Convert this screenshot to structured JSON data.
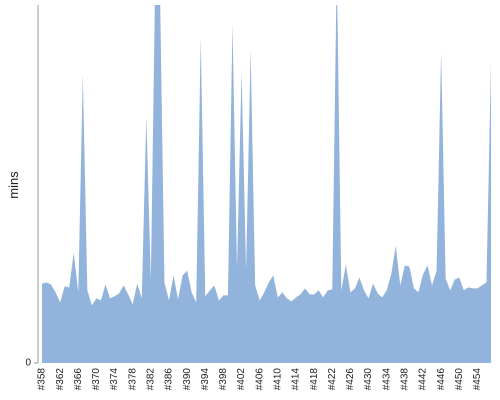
{
  "chart_data": {
    "type": "area",
    "y_label": "mins",
    "color": "#92b4dc",
    "ylim": [
      0,
      36
    ],
    "yticks": [
      0
    ],
    "categories": [
      "#358",
      null,
      null,
      null,
      "#362",
      null,
      null,
      null,
      "#366",
      null,
      null,
      null,
      "#370",
      null,
      null,
      null,
      "#374",
      null,
      null,
      null,
      "#378",
      null,
      null,
      null,
      "#382",
      null,
      null,
      null,
      "#386",
      null,
      null,
      null,
      "#390",
      null,
      null,
      null,
      "#394",
      null,
      null,
      null,
      "#398",
      null,
      null,
      null,
      "#402",
      null,
      null,
      null,
      "#406",
      null,
      null,
      null,
      "#410",
      null,
      null,
      null,
      "#414",
      null,
      null,
      null,
      "#418",
      null,
      null,
      null,
      "#422",
      null,
      null,
      null,
      "#426",
      null,
      null,
      null,
      "#430",
      null,
      null,
      null,
      "#434",
      null,
      null,
      null,
      "#438",
      null,
      null,
      null,
      "#442",
      null,
      null,
      null,
      "#446",
      null,
      null,
      null,
      "#450",
      null,
      null,
      null,
      "#454",
      null,
      null,
      null
    ],
    "values": [
      8.0,
      8.1,
      7.9,
      7.1,
      6.1,
      7.7,
      7.6,
      11.1,
      7.1,
      29.0,
      7.3,
      5.8,
      6.5,
      6.3,
      7.9,
      6.5,
      6.7,
      7.0,
      7.8,
      6.9,
      5.9,
      8.0,
      6.5,
      24.8,
      8.3,
      40,
      38,
      8.1,
      6.3,
      8.8,
      6.4,
      8.8,
      9.3,
      7.1,
      6.1,
      32.8,
      6.7,
      7.3,
      7.8,
      6.3,
      6.8,
      6.8,
      34.1,
      9.5,
      29.3,
      9.3,
      31.5,
      7.8,
      6.3,
      7.1,
      8.1,
      8.8,
      6.6,
      7.1,
      6.5,
      6.2,
      6.6,
      6.9,
      7.5,
      6.9,
      6.9,
      7.3,
      6.6,
      7.3,
      7.4,
      40,
      7.3,
      9.9,
      7.1,
      7.5,
      8.6,
      7.3,
      6.5,
      8.0,
      7.0,
      6.6,
      7.3,
      8.9,
      11.8,
      7.8,
      9.8,
      9.7,
      7.5,
      7.1,
      8.9,
      9.8,
      7.8,
      9.3,
      31.3,
      8.5,
      7.3,
      8.4,
      8.6,
      7.3,
      7.6,
      7.5,
      7.5,
      7.8,
      8.1,
      30.3
    ]
  }
}
